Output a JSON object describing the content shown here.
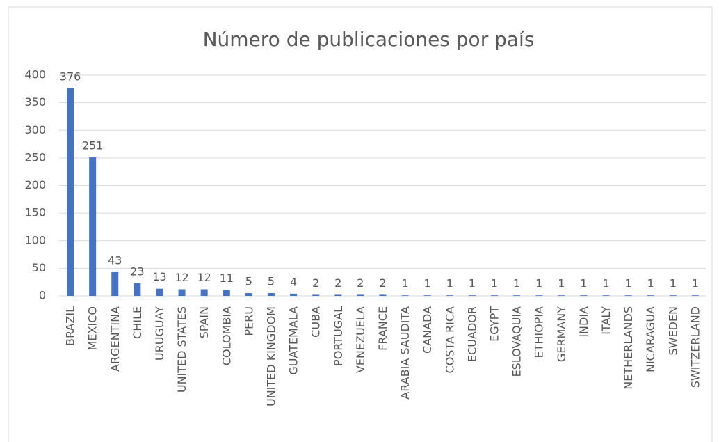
{
  "chart_data": {
    "type": "bar",
    "title": "Número de publicaciones por país",
    "categories": [
      "BRAZIL",
      "MEXICO",
      "ARGENTINA",
      "CHILE",
      "URUGUAY",
      "UNITED STATES",
      "SPAIN",
      "COLOMBIA",
      "PERU",
      "UNITED KINGDOM",
      "GUATEMALA",
      "CUBA",
      "PORTUGAL",
      "VENEZUELA",
      "FRANCE",
      "ARABIA SAUDITA",
      "CANADA",
      "COSTA RICA",
      "ECUADOR",
      "EGYPT",
      "ESLOVAQUIA",
      "ETHIOPIA",
      "GERMANY",
      "INDIA",
      "ITALY",
      "NETHERLANDS",
      "NICARAGUA",
      "SWEDEN",
      "SWITZERLAND"
    ],
    "values": [
      376,
      251,
      43,
      23,
      13,
      12,
      12,
      11,
      5,
      5,
      4,
      2,
      2,
      2,
      2,
      1,
      1,
      1,
      1,
      1,
      1,
      1,
      1,
      1,
      1,
      1,
      1,
      1,
      1
    ],
    "color": "#4472c4",
    "ylim": [
      0,
      400
    ],
    "yticks": [
      0,
      50,
      100,
      150,
      200,
      250,
      300,
      350,
      400
    ],
    "grid": true
  }
}
